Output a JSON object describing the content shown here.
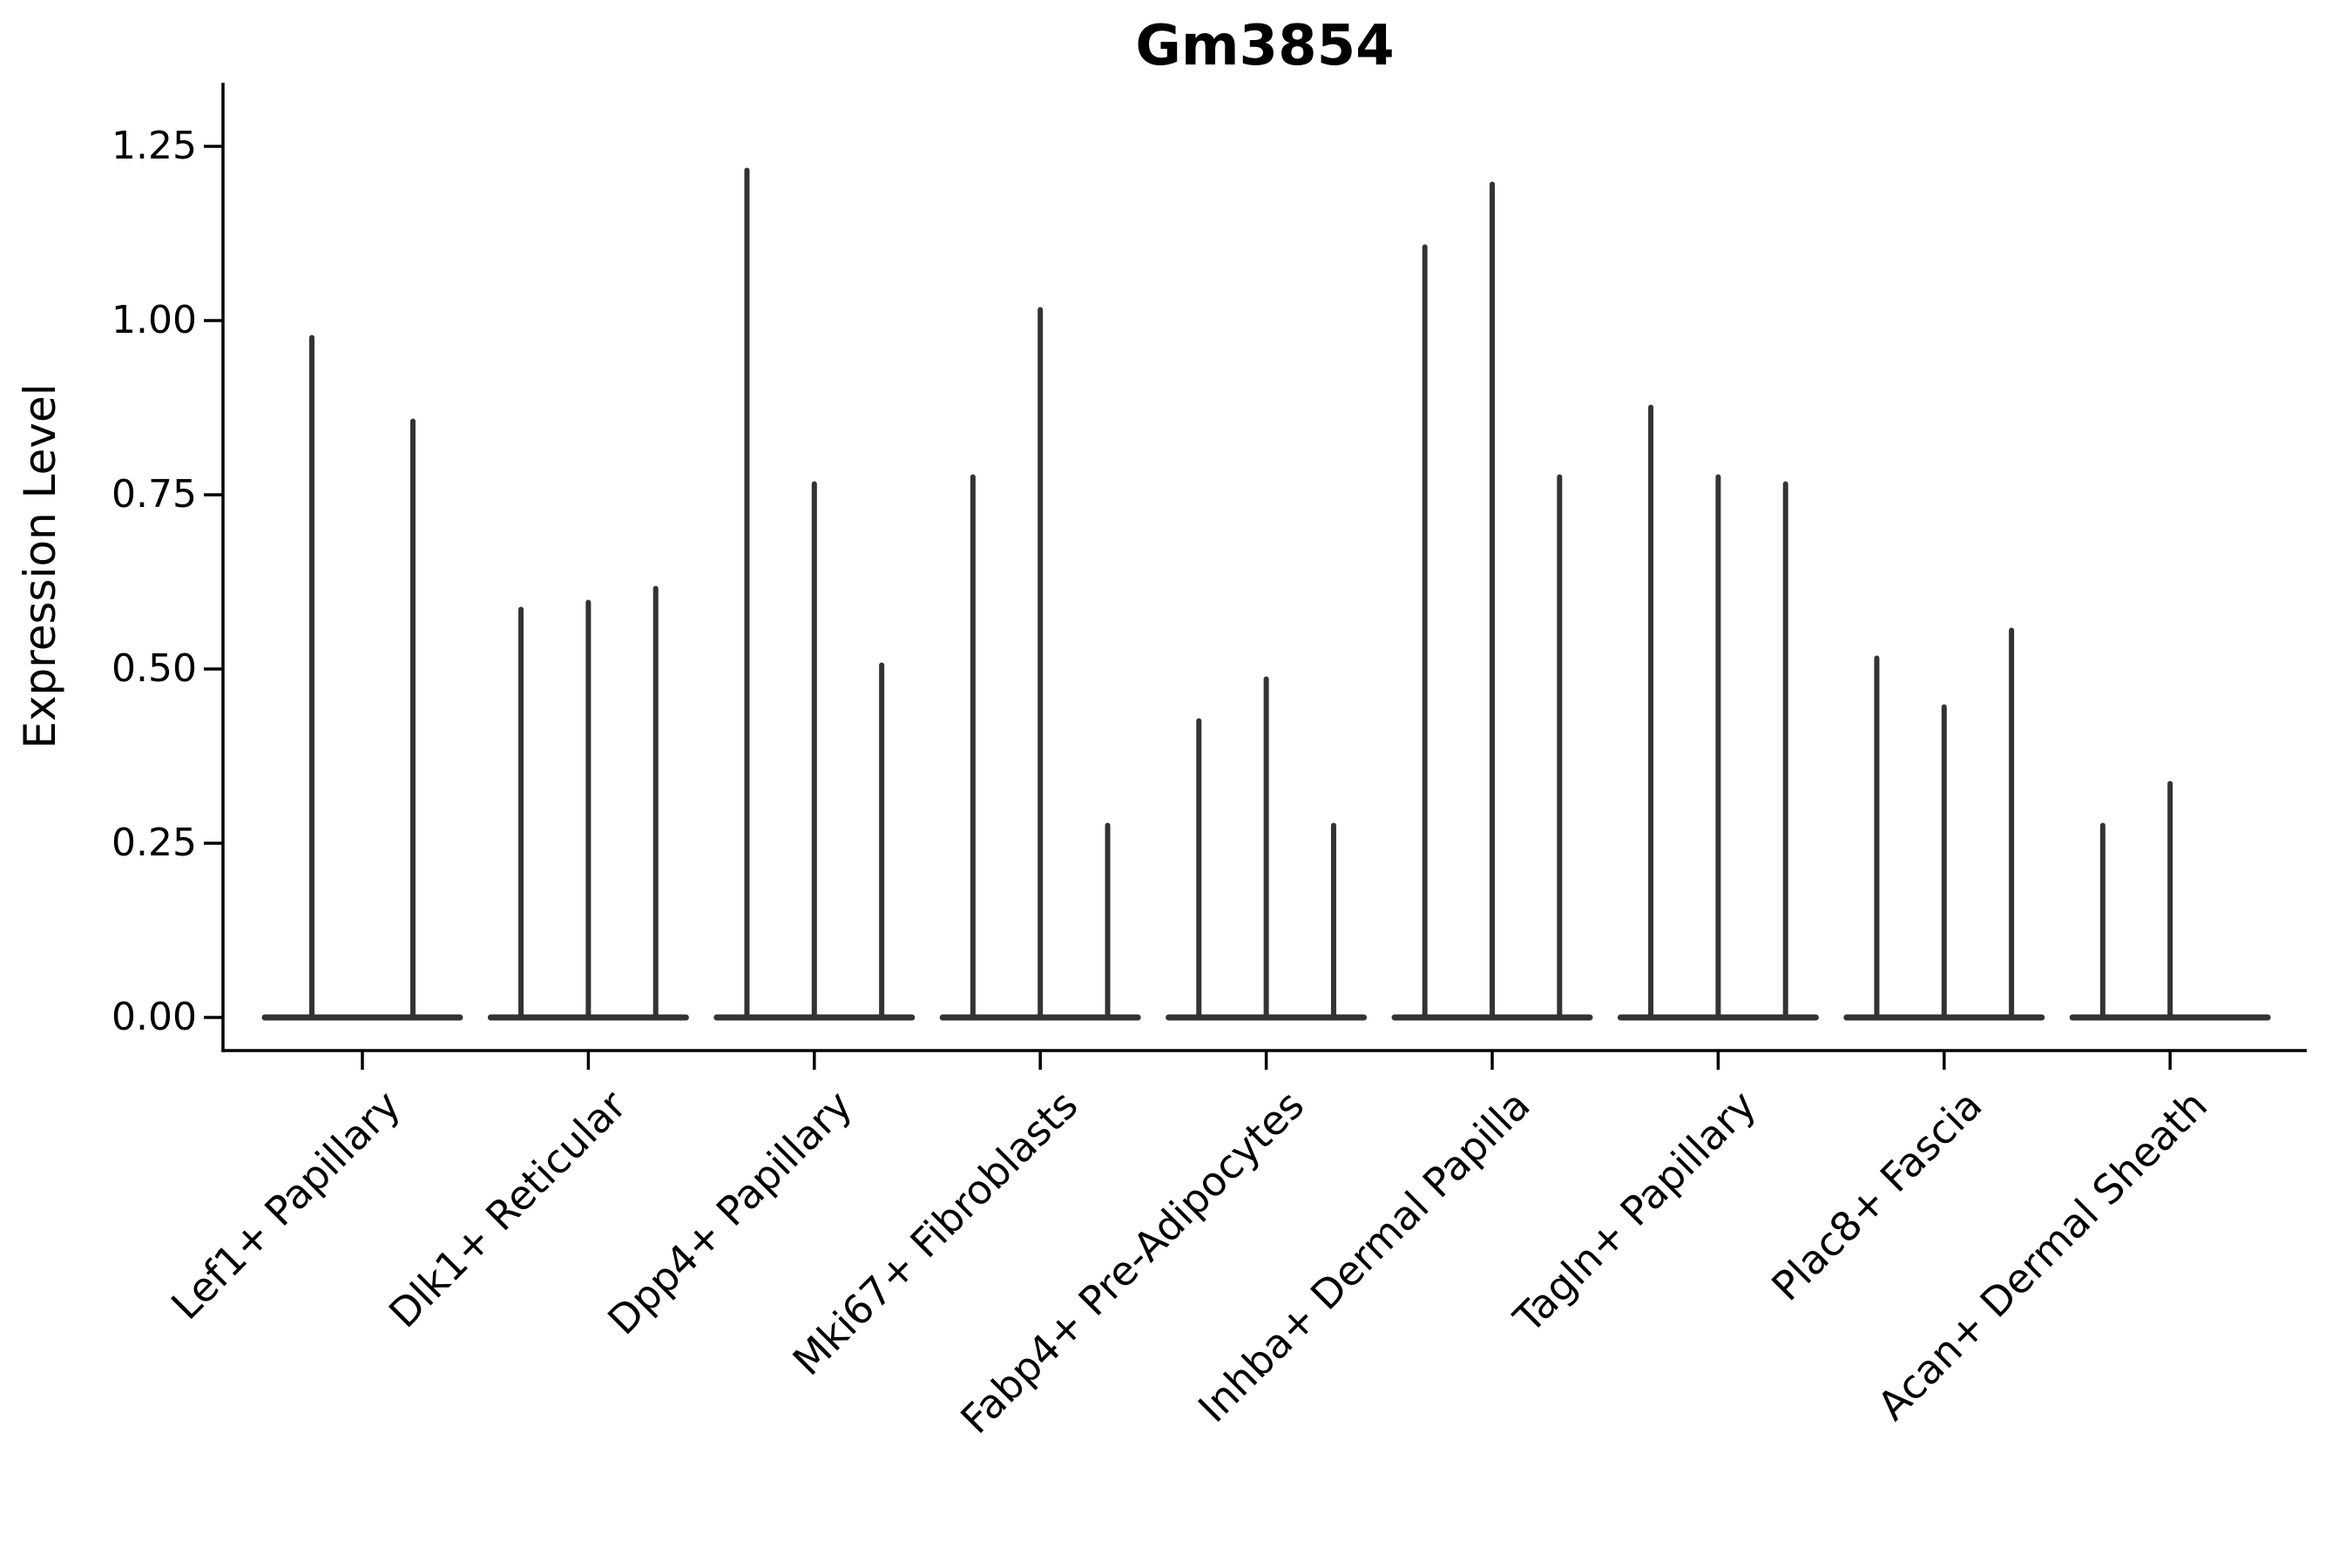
{
  "chart_data": {
    "type": "violin",
    "title": "Gm3854",
    "ylabel": "Expression Level",
    "xlabel": "",
    "ylim": [
      -0.05,
      1.34
    ],
    "grid": false,
    "legend": null,
    "yticks": [
      {
        "value": 0.0,
        "label": "0.00"
      },
      {
        "value": 0.25,
        "label": "0.25"
      },
      {
        "value": 0.5,
        "label": "0.50"
      },
      {
        "value": 0.75,
        "label": "0.75"
      },
      {
        "value": 1.0,
        "label": "1.00"
      },
      {
        "value": 1.25,
        "label": "1.25"
      }
    ],
    "categories": [
      "Lef1+ Papillary",
      "Dlk1+ Reticular",
      "Dpp4+ Papillary",
      "Mki67+ Fibroblasts",
      "Fabp4+ Pre-Adipocytes",
      "Inhba+ Dermal Papilla",
      "Tagln+ Papillary",
      "Plac8+ Fascia",
      "Acan+ Dermal Sheath"
    ],
    "groups": [
      {
        "category": "Lef1+ Papillary",
        "violin_max_values": [
          0.98,
          0.86
        ]
      },
      {
        "category": "Dlk1+ Reticular",
        "violin_max_values": [
          0.59,
          0.6,
          0.62
        ]
      },
      {
        "category": "Dpp4+ Papillary",
        "violin_max_values": [
          1.22,
          0.77,
          0.51
        ]
      },
      {
        "category": "Mki67+ Fibroblasts",
        "violin_max_values": [
          0.78,
          1.02,
          0.28
        ]
      },
      {
        "category": "Fabp4+ Pre-Adipocytes",
        "violin_max_values": [
          0.43,
          0.49,
          0.28
        ]
      },
      {
        "category": "Inhba+ Dermal Papilla",
        "violin_max_values": [
          1.11,
          1.2,
          0.78
        ]
      },
      {
        "category": "Tagln+ Papillary",
        "violin_max_values": [
          0.88,
          0.78,
          0.77
        ]
      },
      {
        "category": "Plac8+ Fascia",
        "violin_max_values": [
          0.52,
          0.45,
          0.56
        ]
      },
      {
        "category": "Acan+ Dermal Sheath",
        "violin_max_values": [
          0.28,
          0.34,
          0.0
        ]
      }
    ],
    "colors": {
      "violin": "#333333",
      "axis": "#000000",
      "text": "#000000",
      "background": "#ffffff"
    }
  }
}
